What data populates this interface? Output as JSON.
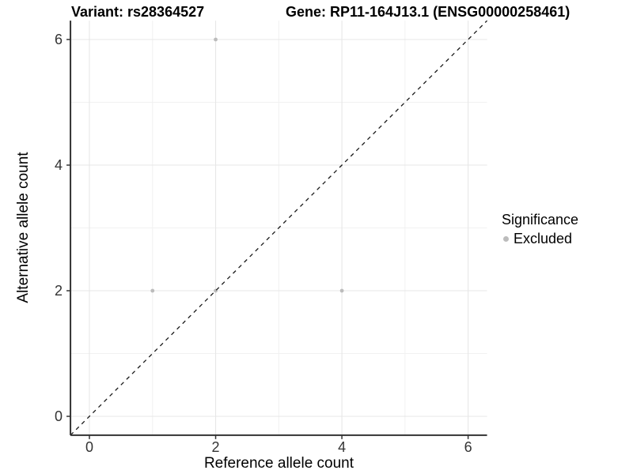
{
  "chart_data": {
    "type": "scatter",
    "title_left": "Variant: rs28364527",
    "title_right": "Gene: RP11-164J13.1 (ENSG00000258461)",
    "xlabel": "Reference allele count",
    "ylabel": "Alternative allele count",
    "xlim": [
      -0.3,
      6.3
    ],
    "ylim": [
      -0.3,
      6.3
    ],
    "x_ticks": [
      0,
      2,
      4,
      6
    ],
    "y_ticks": [
      0,
      2,
      4,
      6
    ],
    "x_minor": [
      1,
      3,
      5
    ],
    "y_minor": [
      1,
      3,
      5
    ],
    "grid": "on",
    "identity_line": {
      "style": "dashed",
      "color": "#1a1a1a",
      "slope": 1,
      "intercept": 0
    },
    "series": [
      {
        "name": "Excluded",
        "color": "#bcbcbc",
        "points": [
          [
            1,
            2
          ],
          [
            2,
            2
          ],
          [
            4,
            2
          ],
          [
            2,
            6
          ]
        ]
      }
    ],
    "legend": {
      "title": "Significance",
      "position": "right",
      "entries": [
        {
          "label": "Excluded",
          "color": "#bcbcbc"
        }
      ]
    },
    "colors": {
      "grid_major": "#e7e7e7",
      "grid_minor": "#f1f1f1",
      "axis": "#333333",
      "tick_text": "#333333"
    }
  }
}
